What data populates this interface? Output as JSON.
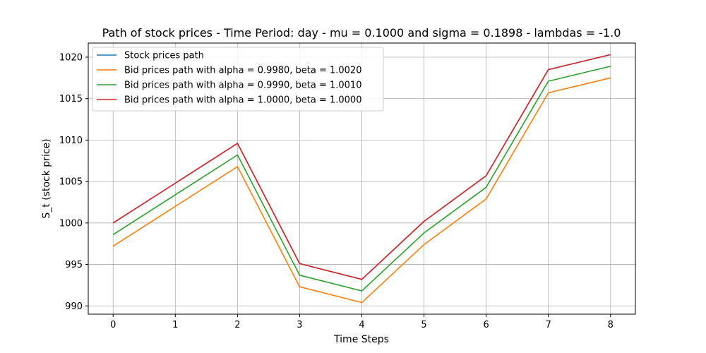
{
  "chart_data": {
    "type": "line",
    "title": "Path of stock prices - Time Period: day - mu = 0.1000 and sigma = 0.1898 - lambdas = -1.0",
    "xlabel": "Time Steps",
    "ylabel": "S_t (stock price)",
    "x": [
      0,
      1,
      2,
      3,
      4,
      5,
      6,
      7,
      8
    ],
    "xticks": [
      0,
      1,
      2,
      3,
      4,
      5,
      6,
      7,
      8
    ],
    "yticks": [
      990,
      995,
      1000,
      1005,
      1010,
      1015,
      1020
    ],
    "xlim": [
      -0.4,
      8.4
    ],
    "ylim": [
      989,
      1021.7
    ],
    "grid": true,
    "legend_position": "top-left",
    "series": [
      {
        "name": "Stock prices path",
        "color": "#1f77b4",
        "values": [
          1000.0,
          1004.8,
          1009.6,
          995.1,
          993.2,
          1000.2,
          1005.7,
          1018.5,
          1020.3
        ]
      },
      {
        "name": "Bid prices path with alpha = 0.9980, beta = 1.0020",
        "color": "#ff7f0e",
        "values": [
          997.2,
          1002.0,
          1006.8,
          992.3,
          990.4,
          997.4,
          1002.9,
          1015.7,
          1017.5
        ]
      },
      {
        "name": "Bid prices path with alpha = 0.9990, beta = 1.0010",
        "color": "#2ca02c",
        "values": [
          998.6,
          1003.4,
          1008.2,
          993.7,
          991.8,
          998.8,
          1004.3,
          1017.1,
          1018.9
        ]
      },
      {
        "name": "Bid prices path with alpha = 1.0000, beta = 1.0000",
        "color": "#d62728",
        "values": [
          1000.0,
          1004.8,
          1009.6,
          995.1,
          993.2,
          1000.2,
          1005.7,
          1018.5,
          1020.3
        ]
      }
    ]
  }
}
